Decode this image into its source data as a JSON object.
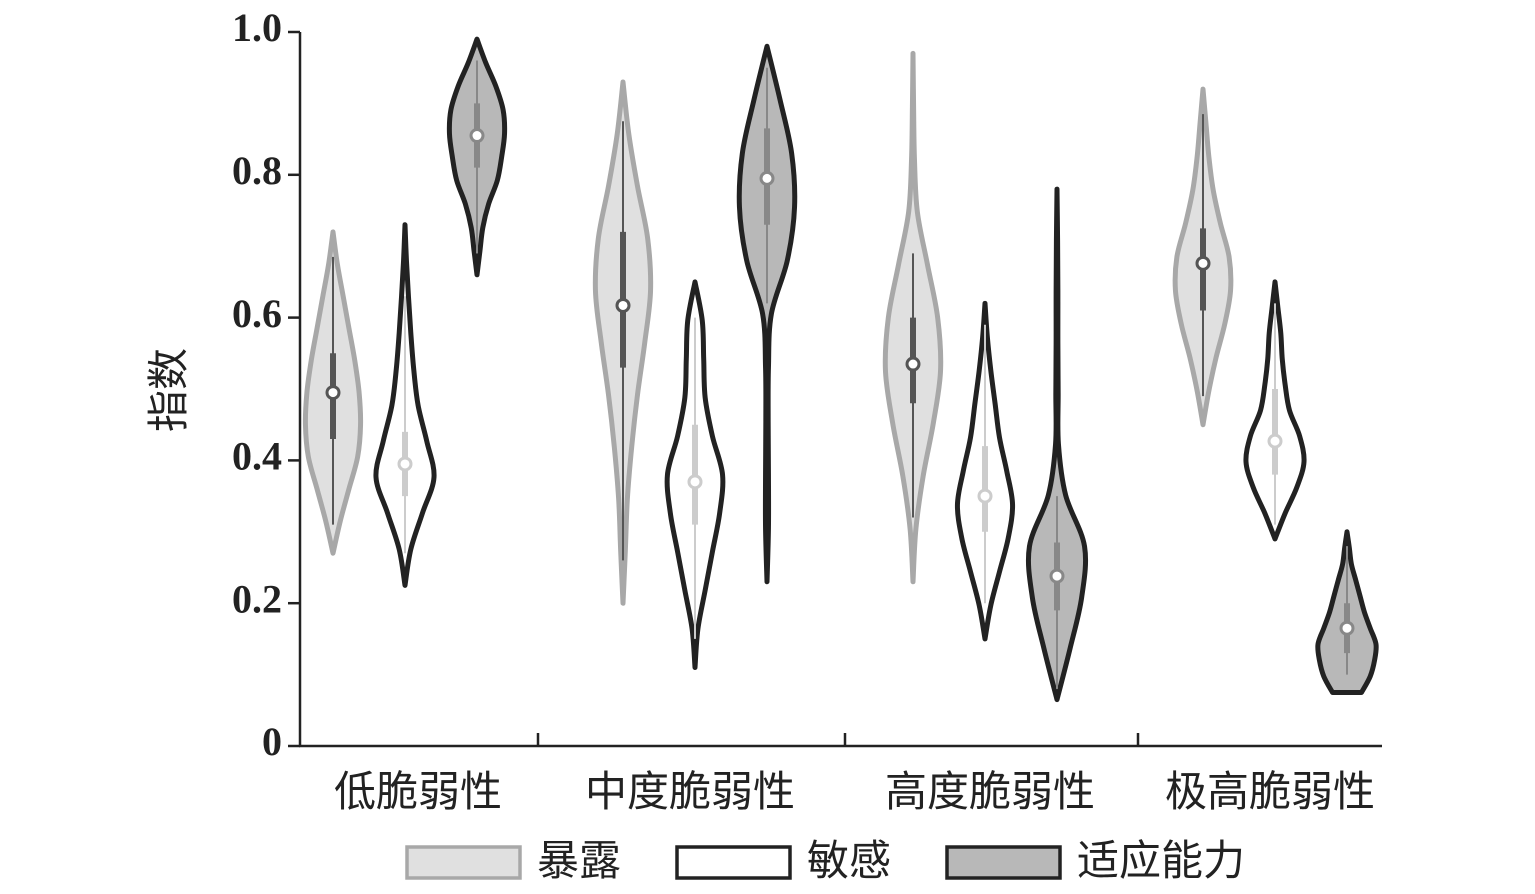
{
  "chart_data": {
    "type": "violin",
    "ylabel": "指数",
    "categories": [
      "低脆弱性",
      "中度脆弱性",
      "高度脆弱性",
      "极高脆弱性"
    ],
    "ylim": [
      0,
      1
    ],
    "yticks": [
      0,
      0.2,
      0.4,
      0.6,
      0.8,
      {
        "value": 1,
        "label": "1.0"
      }
    ],
    "series": [
      {
        "name": "暴露",
        "color": "#e0e0e0",
        "stroke": "#a8a8a8",
        "box_color": "#555555",
        "violins": [
          {
            "min": 0.27,
            "max": 0.72,
            "whisker_low": 0.31,
            "q1": 0.43,
            "median": 0.495,
            "q3": 0.55,
            "whisker_high": 0.685,
            "widths": [
              0,
              0.25,
              0.55,
              0.85,
              0.95,
              0.9,
              0.75,
              0.55,
              0.35,
              0.15,
              0
            ]
          },
          {
            "min": 0.2,
            "max": 0.93,
            "whisker_low": 0.26,
            "q1": 0.53,
            "median": 0.617,
            "q3": 0.72,
            "whisker_high": 0.875,
            "widths": [
              0,
              0.08,
              0.15,
              0.3,
              0.5,
              0.75,
              0.95,
              0.85,
              0.5,
              0.2,
              0
            ]
          },
          {
            "min": 0.23,
            "max": 0.97,
            "whisker_low": 0.32,
            "q1": 0.48,
            "median": 0.535,
            "q3": 0.6,
            "whisker_high": 0.69,
            "widths": [
              0,
              0.1,
              0.35,
              0.7,
              0.95,
              0.85,
              0.5,
              0.15,
              0.05,
              0.02,
              0
            ]
          },
          {
            "min": 0.45,
            "max": 0.92,
            "whisker_low": 0.49,
            "q1": 0.61,
            "median": 0.676,
            "q3": 0.725,
            "whisker_high": 0.885,
            "widths": [
              0,
              0.2,
              0.45,
              0.75,
              0.95,
              0.9,
              0.6,
              0.35,
              0.2,
              0.1,
              0
            ]
          }
        ]
      },
      {
        "name": "敏感",
        "color": "#ffffff",
        "stroke": "#222222",
        "box_color": "#cccccc",
        "violins": [
          {
            "min": 0.225,
            "max": 0.73,
            "whisker_low": 0.27,
            "q1": 0.35,
            "median": 0.395,
            "q3": 0.44,
            "whisker_high": 0.63,
            "widths": [
              0,
              0.2,
              0.6,
              1,
              0.75,
              0.45,
              0.3,
              0.2,
              0.12,
              0.05,
              0
            ]
          },
          {
            "min": 0.11,
            "max": 0.65,
            "whisker_low": 0.15,
            "q1": 0.31,
            "median": 0.37,
            "q3": 0.45,
            "whisker_high": 0.6,
            "widths": [
              0,
              0.1,
              0.35,
              0.6,
              0.85,
              0.95,
              0.6,
              0.35,
              0.3,
              0.25,
              0
            ]
          },
          {
            "min": 0.15,
            "max": 0.62,
            "whisker_low": 0.2,
            "q1": 0.3,
            "median": 0.35,
            "q3": 0.42,
            "whisker_high": 0.59,
            "widths": [
              0,
              0.2,
              0.5,
              0.8,
              0.95,
              0.75,
              0.5,
              0.35,
              0.2,
              0.08,
              0
            ]
          },
          {
            "min": 0.29,
            "max": 0.65,
            "whisker_low": 0.31,
            "q1": 0.38,
            "median": 0.427,
            "q3": 0.5,
            "whisker_high": 0.62,
            "widths": [
              0,
              0.35,
              0.75,
              1,
              0.85,
              0.5,
              0.35,
              0.25,
              0.2,
              0.1,
              0
            ]
          }
        ]
      },
      {
        "name": "适应能力",
        "color": "#b8b8b8",
        "stroke": "#222222",
        "box_color": "#888888",
        "violins": [
          {
            "min": 0.66,
            "max": 0.99,
            "whisker_low": 0.69,
            "q1": 0.81,
            "median": 0.855,
            "q3": 0.9,
            "whisker_high": 0.96,
            "widths": [
              0,
              0.1,
              0.2,
              0.4,
              0.7,
              0.85,
              0.95,
              0.9,
              0.65,
              0.3,
              0
            ]
          },
          {
            "min": 0.23,
            "max": 0.98,
            "whisker_low": 0.62,
            "q1": 0.73,
            "median": 0.795,
            "q3": 0.865,
            "whisker_high": 0.95,
            "widths": [
              0,
              0.05,
              0.05,
              0.04,
              0.05,
              0.15,
              0.7,
              0.95,
              0.85,
              0.45,
              0
            ]
          },
          {
            "min": 0.065,
            "max": 0.78,
            "whisker_low": 0.08,
            "q1": 0.19,
            "median": 0.238,
            "q3": 0.285,
            "whisker_high": 0.35,
            "widths": [
              0,
              0.45,
              0.85,
              0.95,
              0.3,
              0.05,
              0.04,
              0.03,
              0.03,
              0.02,
              0
            ]
          },
          {
            "min": 0.075,
            "max": 0.3,
            "whisker_low": 0.1,
            "q1": 0.13,
            "median": 0.165,
            "q3": 0.2,
            "whisker_high": 0.28,
            "widths": [
              0.5,
              0.8,
              0.95,
              1,
              0.8,
              0.6,
              0.45,
              0.3,
              0.15,
              0.08,
              0
            ]
          }
        ]
      }
    ]
  }
}
